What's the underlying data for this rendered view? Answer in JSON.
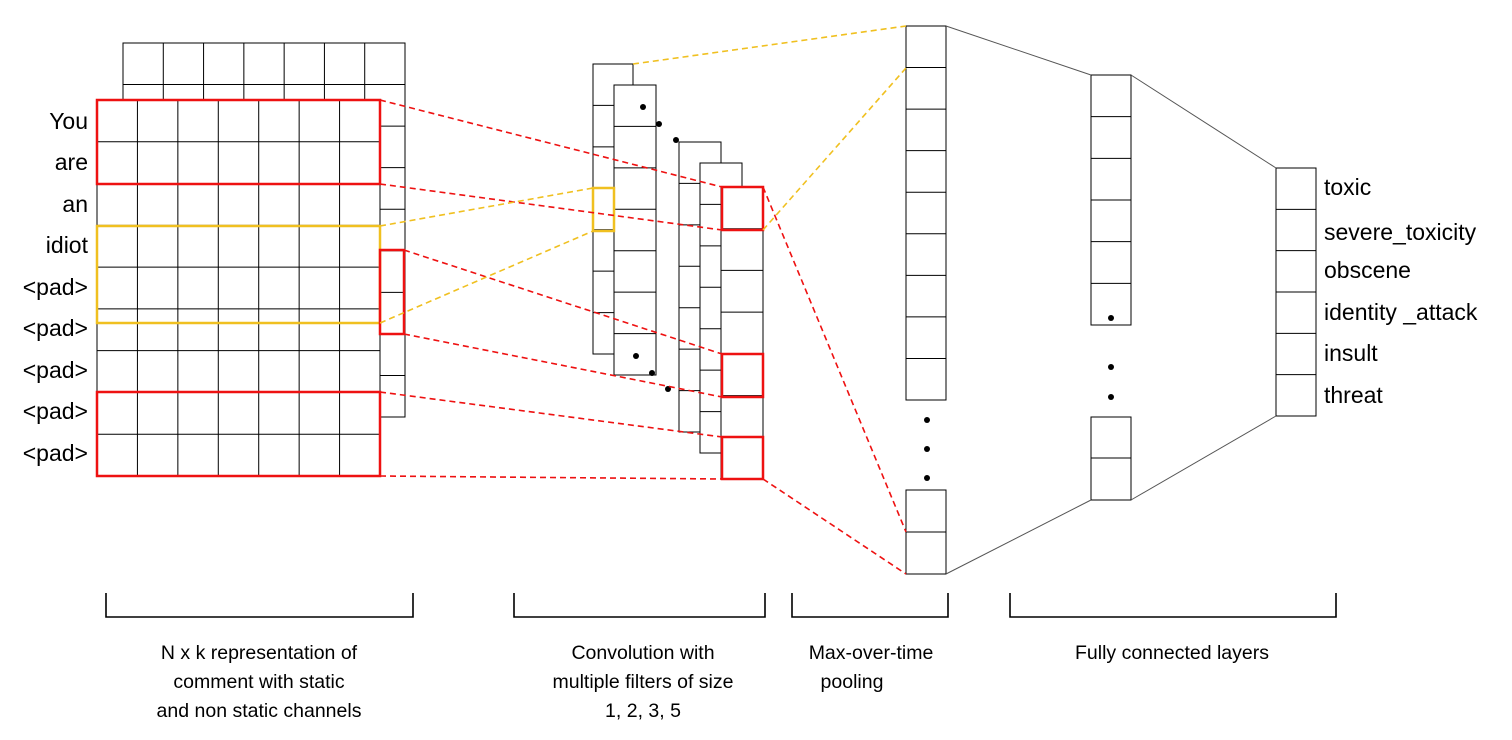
{
  "words": [
    "You",
    "are",
    "an",
    "idiot",
    "<pad>",
    "<pad>",
    "<pad>",
    "<pad>",
    "<pad>"
  ],
  "outputs": [
    "toxic",
    "severe_toxicity",
    "obscene",
    "identity _attack",
    "insult",
    "threat"
  ],
  "captions": {
    "representation": [
      "N x k representation of",
      "comment with static",
      "and non static channels"
    ],
    "convolution": [
      "Convolution with",
      "multiple filters of size",
      "1, 2, 3, 5"
    ],
    "pooling": [
      "Max-over-time",
      "pooling"
    ],
    "fully_connected": [
      "Fully connected layers"
    ]
  },
  "colors": {
    "highlight_red": "#ee1111",
    "highlight_yellow": "#f0c020"
  }
}
